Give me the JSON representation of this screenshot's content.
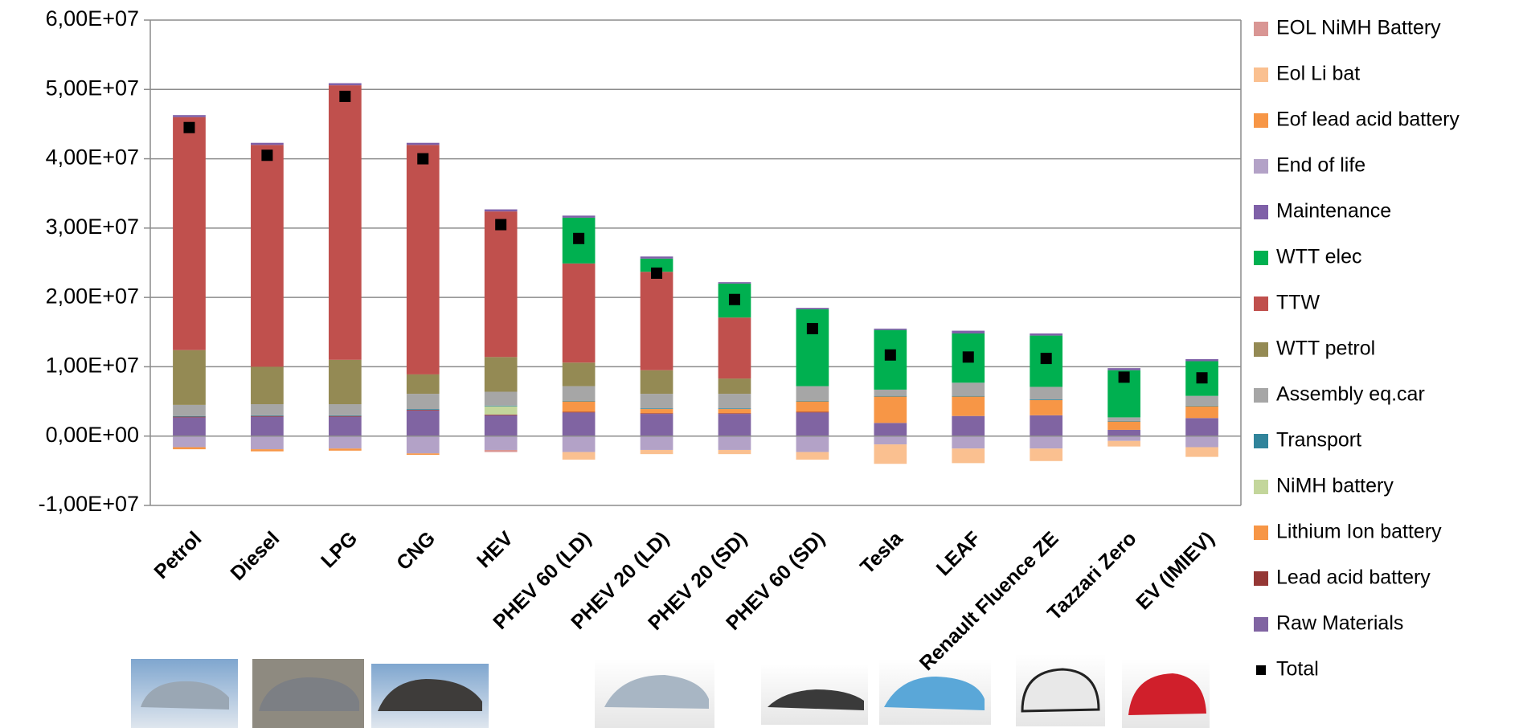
{
  "chart_data": {
    "type": "bar",
    "stacked": true,
    "categories": [
      "Petrol",
      "Diesel",
      "LPG",
      "CNG",
      "HEV",
      "PHEV 60 (LD)",
      "PHEV 20 (LD)",
      "PHEV 20 (SD)",
      "PHEV 60 (SD)",
      "Tesla",
      "LEAF",
      "Renault Fluence ZE",
      "Tazzari Zero",
      "EV (IMIEV)"
    ],
    "ylim": [
      -10000000,
      60000000
    ],
    "yticks": [
      {
        "value": -10000000,
        "label": "-1,00E+07"
      },
      {
        "value": 0,
        "label": "0,00E+00"
      },
      {
        "value": 10000000,
        "label": "1,00E+07"
      },
      {
        "value": 20000000,
        "label": "2,00E+07"
      },
      {
        "value": 30000000,
        "label": "3,00E+07"
      },
      {
        "value": 40000000,
        "label": "4,00E+07"
      },
      {
        "value": 50000000,
        "label": "5,00E+07"
      },
      {
        "value": 60000000,
        "label": "6,00E+07"
      }
    ],
    "grid": true,
    "series": [
      {
        "name": "Raw Materials",
        "color": "#8064a2",
        "values": [
          2700000,
          2800000,
          2800000,
          3700000,
          3000000,
          3400000,
          3200000,
          3200000,
          3400000,
          1900000,
          2900000,
          3000000,
          900000,
          2600000
        ]
      },
      {
        "name": "Lead acid battery",
        "color": "#953735",
        "values": [
          100000,
          100000,
          100000,
          100000,
          100000,
          100000,
          100000,
          100000,
          100000,
          0,
          0,
          0,
          0,
          0
        ]
      },
      {
        "name": "Lithium Ion battery",
        "color": "#f79646",
        "values": [
          0,
          0,
          0,
          0,
          0,
          1500000,
          600000,
          600000,
          1500000,
          3800000,
          2800000,
          2200000,
          1200000,
          1700000
        ]
      },
      {
        "name": "NiMH battery",
        "color": "#c3d69b",
        "values": [
          0,
          0,
          0,
          0,
          1200000,
          0,
          0,
          0,
          0,
          0,
          0,
          0,
          0,
          0
        ]
      },
      {
        "name": "Transport",
        "color": "#31849b",
        "values": [
          100000,
          100000,
          100000,
          100000,
          100000,
          100000,
          100000,
          100000,
          100000,
          100000,
          100000,
          100000,
          100000,
          100000
        ]
      },
      {
        "name": "Assembly eq.car",
        "color": "#a6a6a6",
        "values": [
          1600000,
          1600000,
          1600000,
          2200000,
          2000000,
          2100000,
          2100000,
          2100000,
          2100000,
          900000,
          1900000,
          1800000,
          500000,
          1400000
        ]
      },
      {
        "name": "WTT petrol",
        "color": "#948a54",
        "values": [
          7900000,
          5400000,
          6400000,
          2800000,
          5000000,
          3400000,
          3400000,
          2200000,
          0,
          0,
          0,
          0,
          0,
          0
        ]
      },
      {
        "name": "TTW",
        "color": "#c0504d",
        "values": [
          33600000,
          32000000,
          39600000,
          33100000,
          21000000,
          14300000,
          14200000,
          8800000,
          0,
          0,
          0,
          0,
          0,
          0
        ]
      },
      {
        "name": "WTT elec",
        "color": "#00b050",
        "values": [
          0,
          0,
          0,
          0,
          0,
          6600000,
          1900000,
          4900000,
          11100000,
          8600000,
          7100000,
          7400000,
          6800000,
          5000000
        ]
      },
      {
        "name": "Maintenance",
        "color": "#7f60a8",
        "values": [
          300000,
          300000,
          300000,
          300000,
          300000,
          300000,
          300000,
          200000,
          200000,
          200000,
          400000,
          300000,
          300000,
          300000
        ]
      },
      {
        "name": "End of life",
        "color": "#b3a2c7",
        "values": [
          -1600000,
          -1900000,
          -1800000,
          -2500000,
          -2000000,
          -2300000,
          -2000000,
          -2000000,
          -2300000,
          -1200000,
          -1800000,
          -1800000,
          -700000,
          -1600000
        ]
      },
      {
        "name": "Eof lead acid battery",
        "color": "#f79646",
        "values": [
          -300000,
          -300000,
          -300000,
          -200000,
          0,
          0,
          0,
          0,
          0,
          0,
          0,
          0,
          0,
          0
        ]
      },
      {
        "name": "Eol Li bat",
        "color": "#fac090",
        "values": [
          0,
          0,
          0,
          0,
          0,
          -1100000,
          -600000,
          -600000,
          -1100000,
          -2800000,
          -2100000,
          -1800000,
          -800000,
          -1400000
        ]
      },
      {
        "name": "EOL NiMH Battery",
        "color": "#d99694",
        "values": [
          0,
          0,
          0,
          0,
          -300000,
          0,
          0,
          0,
          0,
          0,
          0,
          0,
          0,
          0
        ]
      }
    ],
    "total": {
      "name": "Total",
      "color": "#000000",
      "values": [
        44500000,
        40500000,
        49000000,
        40000000,
        30500000,
        28500000,
        23500000,
        19700000,
        15500000,
        11700000,
        11400000,
        11200000,
        8500000,
        8400000
      ]
    }
  }
}
